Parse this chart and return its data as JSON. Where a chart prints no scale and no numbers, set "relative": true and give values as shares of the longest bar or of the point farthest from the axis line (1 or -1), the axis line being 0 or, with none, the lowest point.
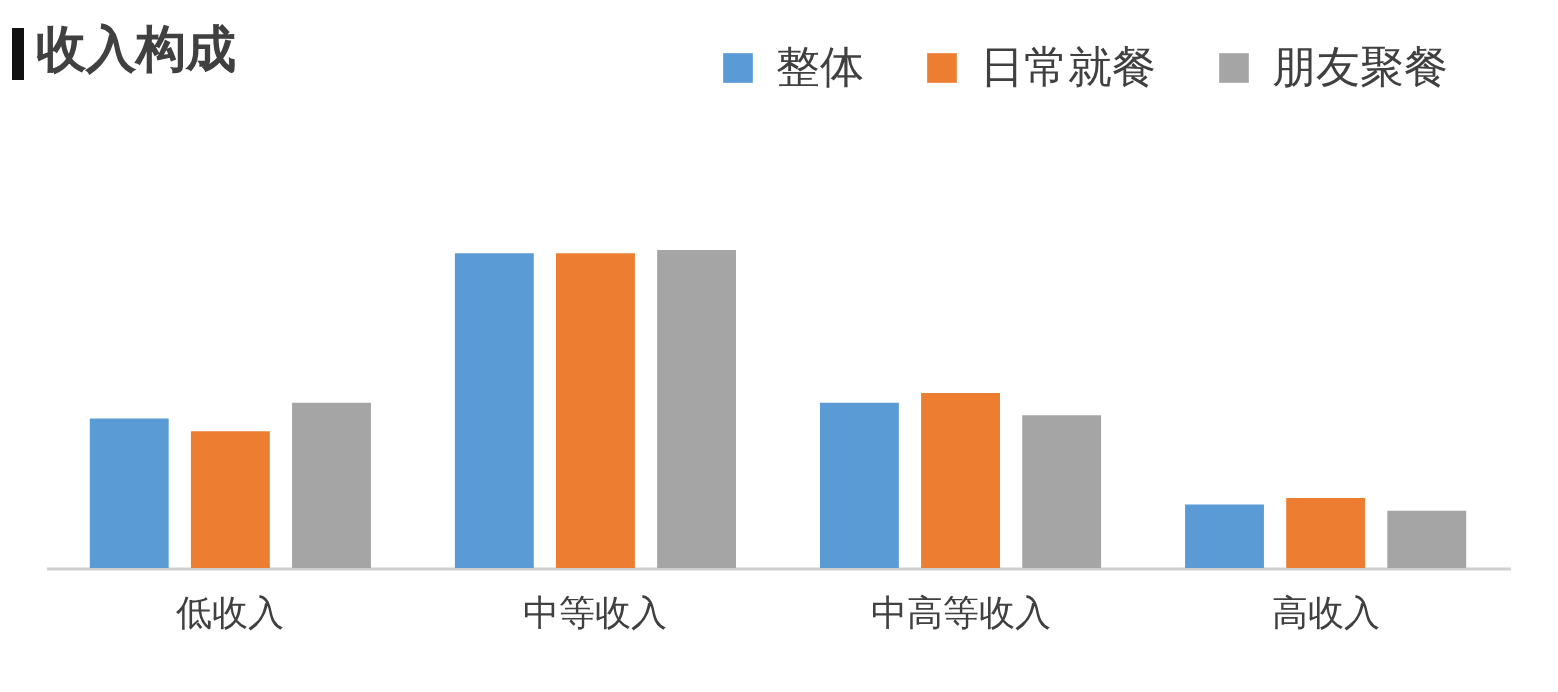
{
  "chart_data": {
    "type": "bar",
    "title": "收入构成",
    "relative": true,
    "legend": "top right",
    "categories": [
      "低收入",
      "中等收入",
      "中高等收入",
      "高收入"
    ],
    "series": [
      {
        "name": "整体",
        "color": "#5b9bd5",
        "values": [
          0.47,
          0.99,
          0.52,
          0.2
        ]
      },
      {
        "name": "日常就餐",
        "color": "#ed7d31",
        "values": [
          0.43,
          0.99,
          0.55,
          0.22
        ]
      },
      {
        "name": "朋友聚餐",
        "color": "#a5a5a5",
        "values": [
          0.52,
          1.0,
          0.48,
          0.18
        ]
      }
    ]
  }
}
